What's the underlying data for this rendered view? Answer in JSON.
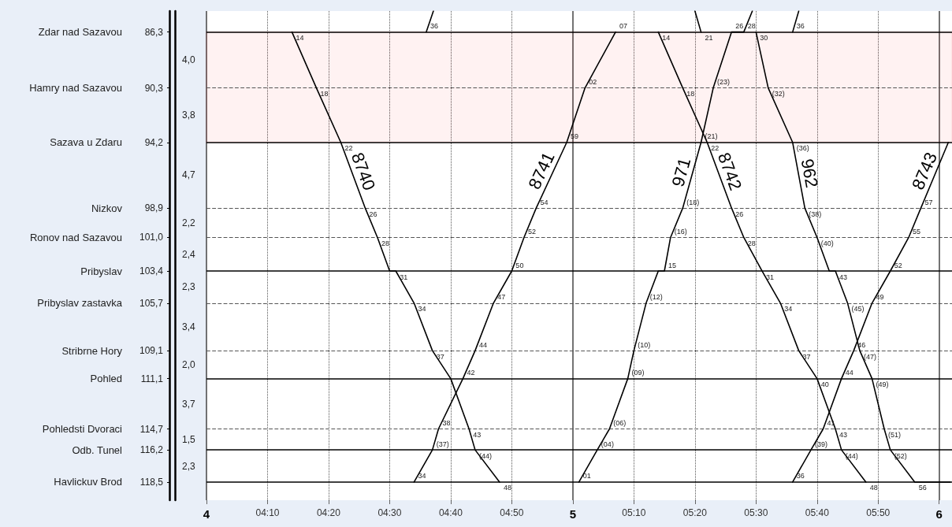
{
  "chart_data": {
    "type": "line",
    "xlim": [
      4,
      6.035
    ],
    "xticks": [
      4,
      {
        "value": 4.1667,
        "label": "04:10"
      },
      {
        "value": 4.3333,
        "label": "04:20"
      },
      {
        "value": 4.5,
        "label": "04:30"
      },
      {
        "value": 4.6667,
        "label": "04:40"
      },
      {
        "value": 4.8333,
        "label": "04:50"
      },
      5,
      {
        "value": 5.1667,
        "label": "05:10"
      },
      {
        "value": 5.3333,
        "label": "05:20"
      },
      {
        "value": 5.5,
        "label": "05:30"
      },
      {
        "value": 5.6667,
        "label": "05:40"
      },
      {
        "value": 5.8333,
        "label": "05:50"
      },
      6
    ],
    "ylim": [
      119.8,
      84.8
    ],
    "yticks": [
      {
        "value": 86.3,
        "label": "86,3"
      },
      {
        "value": 90.3,
        "label": "90,3"
      },
      {
        "value": 94.2,
        "label": "94,2"
      },
      {
        "value": 98.9,
        "label": "98,9"
      },
      {
        "value": 101.0,
        "label": "101,0"
      },
      {
        "value": 103.4,
        "label": "103,4"
      },
      {
        "value": 105.7,
        "label": "105,7"
      },
      {
        "value": 109.1,
        "label": "109,1"
      },
      {
        "value": 111.1,
        "label": "111,1"
      },
      {
        "value": 114.7,
        "label": "114,7"
      },
      {
        "value": 116.2,
        "label": "116,2"
      },
      {
        "value": 118.5,
        "label": "118,5"
      }
    ],
    "grid": "x",
    "bands": [
      {
        "axis": "y",
        "from": 86.3,
        "to": 94.2,
        "color": "#ff0000"
      }
    ],
    "ref_lines": [
      {
        "axis": "y",
        "value": 86.3,
        "line_style": "solid",
        "color": "#000000"
      },
      {
        "axis": "y",
        "value": 90.3,
        "line_style": "dashed",
        "color": "#555555"
      },
      {
        "axis": "y",
        "value": 94.2,
        "line_style": "solid",
        "color": "#000000"
      },
      {
        "axis": "y",
        "value": 98.9,
        "line_style": "dashed",
        "color": "#555555"
      },
      {
        "axis": "y",
        "value": 101.0,
        "line_style": "dashed",
        "color": "#555555"
      },
      {
        "axis": "y",
        "value": 103.4,
        "line_style": "solid",
        "color": "#000000"
      },
      {
        "axis": "y",
        "value": 105.7,
        "line_style": "dashed",
        "color": "#555555"
      },
      {
        "axis": "y",
        "value": 109.1,
        "line_style": "dashed",
        "color": "#555555"
      },
      {
        "axis": "y",
        "value": 111.1,
        "line_style": "solid",
        "color": "#000000"
      },
      {
        "axis": "y",
        "value": 114.7,
        "line_style": "dashed",
        "color": "#555555"
      },
      {
        "axis": "y",
        "value": 116.2,
        "line_style": "solid",
        "color": "#000000"
      },
      {
        "axis": "y",
        "value": 118.5,
        "line_style": "solid",
        "color": "#000000"
      }
    ],
    "series": [
      {
        "name": "8740",
        "color": "#000000",
        "x": [
          4.2333,
          4.3,
          4.3667,
          4.4333,
          4.4667,
          4.5,
          4.5167,
          4.5667,
          4.6167,
          4.6667,
          4.7167,
          4.7333,
          4.8
        ],
        "values": [
          86.3,
          90.3,
          94.2,
          98.9,
          101.0,
          103.4,
          103.4,
          105.7,
          109.1,
          111.1,
          114.7,
          116.2,
          118.5
        ]
      },
      {
        "name": "8741",
        "color": "#000000",
        "x": [
          4.5667,
          4.6167,
          4.6333,
          4.7,
          4.7333,
          4.7833,
          4.8333,
          4.8667,
          4.9,
          4.9833,
          5.0333,
          5.1167
        ],
        "values": [
          118.5,
          116.2,
          114.7,
          111.1,
          109.1,
          105.7,
          103.4,
          101.0,
          98.9,
          94.2,
          90.3,
          86.3
        ]
      },
      {
        "name": "971",
        "color": "#000000",
        "x": [
          5.0167,
          5.0667,
          5.1,
          5.15,
          5.1667,
          5.2,
          5.2333,
          5.25,
          5.2667,
          5.3,
          5.35,
          5.3833,
          5.4333,
          5.4667,
          5.49
        ],
        "values": [
          118.5,
          116.2,
          114.7,
          111.1,
          109.1,
          105.7,
          103.4,
          103.4,
          101.0,
          98.9,
          94.2,
          90.3,
          86.3,
          86.3,
          84.8
        ]
      },
      {
        "name": "962",
        "color": "#000000",
        "x": [
          5.5,
          5.5333,
          5.6,
          5.6333,
          5.6667,
          5.7,
          5.7167,
          5.75,
          5.7833,
          5.8167,
          5.85,
          5.8667,
          5.9333,
          6.03
        ],
        "values": [
          86.3,
          90.3,
          94.2,
          98.9,
          101.0,
          103.4,
          103.4,
          105.7,
          109.1,
          111.1,
          114.7,
          116.2,
          118.5,
          118.5
        ]
      },
      {
        "name": "8742",
        "color": "#000000",
        "x": [
          5.2333,
          5.3,
          5.3667,
          5.4333,
          5.4667,
          5.5167,
          5.5667,
          5.6167,
          5.6667,
          5.7167,
          5.7333,
          5.8
        ],
        "values": [
          86.3,
          90.3,
          94.2,
          98.9,
          101.0,
          103.4,
          105.7,
          109.1,
          111.1,
          114.7,
          116.2,
          118.5
        ]
      },
      {
        "name": "8743",
        "color": "#000000",
        "x": [
          5.6,
          5.65,
          5.6833,
          5.7333,
          5.7667,
          5.8167,
          5.8667,
          5.9167,
          5.95,
          6.025
        ],
        "values": [
          118.5,
          116.2,
          114.7,
          111.1,
          109.1,
          105.7,
          103.4,
          101.0,
          98.9,
          94.2
        ]
      },
      {
        "color": "#000000",
        "x": [
          4.6,
          4.6194
        ],
        "values": [
          86.3,
          84.8
        ]
      },
      {
        "color": "#000000",
        "x": [
          5.3333,
          5.35
        ],
        "values": [
          84.8,
          86.3
        ]
      },
      {
        "color": "#000000",
        "x": [
          5.6,
          5.6167
        ],
        "values": [
          86.3,
          84.8
        ]
      }
    ],
    "annotations": [
      "Zdar nad Sazavou",
      "Hamry nad Sazavou",
      "Sazava u Zdaru",
      "Nizkov",
      "Ronov nad Sazavou",
      "Pribyslav",
      "Pribyslav zastavka",
      "Stribrne Hory",
      "Pohled",
      "Pohledsti Dvoraci",
      "Odb. Tunel",
      "Havlickuv Brod",
      "4,0",
      "3,8",
      "4,7",
      "2,2",
      "2,4",
      "2,3",
      "3,4",
      "2,0",
      "3,7",
      "1,5",
      "2,3",
      {
        "text": "14",
        "x": 4.2333,
        "y": 86.3
      },
      {
        "text": "18",
        "x": 4.3,
        "y": 90.3
      },
      {
        "text": "22",
        "x": 4.3667,
        "y": 94.2
      },
      {
        "text": "26",
        "x": 4.4333,
        "y": 98.9
      },
      {
        "text": "28",
        "x": 4.4667,
        "y": 101.0
      },
      {
        "text": "31",
        "x": 4.5167,
        "y": 103.4
      },
      {
        "text": "34",
        "x": 4.5667,
        "y": 105.7
      },
      {
        "text": "37",
        "x": 4.6167,
        "y": 109.1
      },
      {
        "text": "43",
        "x": 4.7167,
        "y": 114.7
      },
      {
        "text": "(44)",
        "x": 4.7333,
        "y": 116.2
      },
      {
        "text": "48",
        "x": 4.8,
        "y": 118.5
      },
      {
        "text": "34",
        "x": 4.5667,
        "y": 118.5
      },
      {
        "text": "(37)",
        "x": 4.6167,
        "y": 116.2
      },
      {
        "text": "38",
        "x": 4.6333,
        "y": 114.7
      },
      {
        "text": "42",
        "x": 4.7,
        "y": 111.1
      },
      {
        "text": "44",
        "x": 4.7333,
        "y": 109.1
      },
      {
        "text": "47",
        "x": 4.7833,
        "y": 105.7
      },
      {
        "text": "50",
        "x": 4.8333,
        "y": 103.4
      },
      {
        "text": "52",
        "x": 4.8667,
        "y": 101.0
      },
      {
        "text": "54",
        "x": 4.9,
        "y": 98.9
      },
      {
        "text": "59",
        "x": 4.9833,
        "y": 94.2
      },
      {
        "text": "02",
        "x": 5.0333,
        "y": 90.3
      },
      {
        "text": "07",
        "x": 5.1167,
        "y": 86.3
      },
      {
        "text": "01",
        "x": 5.0167,
        "y": 118.5
      },
      {
        "text": "(04)",
        "x": 5.0667,
        "y": 116.2
      },
      {
        "text": "(06)",
        "x": 5.1,
        "y": 114.7
      },
      {
        "text": "(09)",
        "x": 5.15,
        "y": 111.1
      },
      {
        "text": "(10)",
        "x": 5.1667,
        "y": 109.1
      },
      {
        "text": "(12)",
        "x": 5.2,
        "y": 105.7
      },
      {
        "text": "15",
        "x": 5.25,
        "y": 103.4
      },
      {
        "text": "(16)",
        "x": 5.2667,
        "y": 101.0
      },
      {
        "text": "(18)",
        "x": 5.3,
        "y": 98.9
      },
      {
        "text": "(21)",
        "x": 5.35,
        "y": 94.2
      },
      {
        "text": "(23)",
        "x": 5.3833,
        "y": 90.3
      },
      {
        "text": "26",
        "x": 5.4333,
        "y": 86.3
      },
      {
        "text": "28",
        "x": 5.4667,
        "y": 86.3
      },
      {
        "text": "30",
        "x": 5.5,
        "y": 86.3
      },
      {
        "text": "(32)",
        "x": 5.5333,
        "y": 90.3
      },
      {
        "text": "(36)",
        "x": 5.6,
        "y": 94.2
      },
      {
        "text": "(38)",
        "x": 5.6333,
        "y": 98.9
      },
      {
        "text": "(40)",
        "x": 5.6667,
        "y": 101.0
      },
      {
        "text": "43",
        "x": 5.7167,
        "y": 103.4
      },
      {
        "text": "(45)",
        "x": 5.75,
        "y": 105.7
      },
      {
        "text": "(47)",
        "x": 5.7833,
        "y": 109.1
      },
      {
        "text": "(49)",
        "x": 5.8167,
        "y": 111.1
      },
      {
        "text": "(51)",
        "x": 5.85,
        "y": 114.7
      },
      {
        "text": "(52)",
        "x": 5.8667,
        "y": 116.2
      },
      {
        "text": "56",
        "x": 5.9333,
        "y": 118.5
      },
      {
        "text": "14",
        "x": 5.2333,
        "y": 86.3
      },
      {
        "text": "18",
        "x": 5.3,
        "y": 90.3
      },
      {
        "text": "22",
        "x": 5.3667,
        "y": 94.2
      },
      {
        "text": "26",
        "x": 5.4333,
        "y": 98.9
      },
      {
        "text": "28",
        "x": 5.4667,
        "y": 101.0
      },
      {
        "text": "31",
        "x": 5.5167,
        "y": 103.4
      },
      {
        "text": "34",
        "x": 5.5667,
        "y": 105.7
      },
      {
        "text": "37",
        "x": 5.6167,
        "y": 109.1
      },
      {
        "text": "40",
        "x": 5.6667,
        "y": 111.1
      },
      {
        "text": "43",
        "x": 5.7167,
        "y": 114.7
      },
      {
        "text": "(44)",
        "x": 5.7333,
        "y": 116.2
      },
      {
        "text": "48",
        "x": 5.8,
        "y": 118.5
      },
      {
        "text": "36",
        "x": 5.6,
        "y": 118.5
      },
      {
        "text": "(39)",
        "x": 5.65,
        "y": 116.2
      },
      {
        "text": "41",
        "x": 5.6833,
        "y": 114.7
      },
      {
        "text": "44",
        "x": 5.7333,
        "y": 111.1
      },
      {
        "text": "46",
        "x": 5.7667,
        "y": 109.1
      },
      {
        "text": "49",
        "x": 5.8167,
        "y": 105.7
      },
      {
        "text": "52",
        "x": 5.8667,
        "y": 103.4
      },
      {
        "text": "55",
        "x": 5.9167,
        "y": 101.0
      },
      {
        "text": "57",
        "x": 5.95,
        "y": 98.9
      },
      {
        "text": "36",
        "x": 4.6,
        "y": 86.3
      },
      {
        "text": "21",
        "x": 5.35,
        "y": 86.3
      },
      {
        "text": "36",
        "x": 5.6,
        "y": 86.3
      }
    ]
  }
}
